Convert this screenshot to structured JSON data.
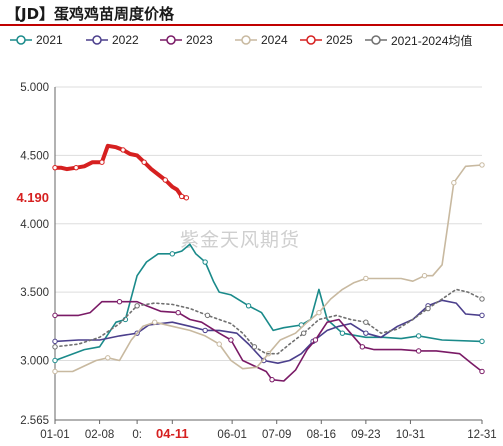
{
  "title": "【JD】蛋鸡鸡苗周度价格",
  "watermark": "紫金天风期货",
  "chart_data": {
    "type": "line",
    "title": "【JD】蛋鸡鸡苗周度价格",
    "xlabel": "",
    "ylabel": "",
    "ylim": [
      2.565,
      5.0
    ],
    "yticks": [
      "5.000",
      "4.500",
      "4.000",
      "3.500",
      "3.000",
      "2.565"
    ],
    "ytick_values": [
      5.0,
      4.5,
      4.0,
      3.5,
      3.0,
      2.565
    ],
    "xticks": [
      "01-01",
      "02-08",
      "0:",
      "04-11",
      "06-01",
      "07-09",
      "08-16",
      "09-23",
      "10-31",
      "12-31"
    ],
    "xtick_days": [
      0,
      38,
      70,
      100,
      151,
      189,
      227,
      265,
      303,
      364
    ],
    "highlight_xtick": "04-11",
    "highlight_value": "4.190",
    "legend_position": "top",
    "grid": "horizontal",
    "x_unit": "day of year",
    "series": [
      {
        "name": "2021",
        "color": "#1a8a8a",
        "marker": "circle",
        "points": [
          [
            0,
            3.0
          ],
          [
            25,
            3.08
          ],
          [
            38,
            3.1
          ],
          [
            52,
            3.28
          ],
          [
            60,
            3.3
          ],
          [
            70,
            3.62
          ],
          [
            78,
            3.72
          ],
          [
            88,
            3.78
          ],
          [
            100,
            3.78
          ],
          [
            108,
            3.8
          ],
          [
            115,
            3.85
          ],
          [
            120,
            3.78
          ],
          [
            128,
            3.72
          ],
          [
            135,
            3.58
          ],
          [
            140,
            3.5
          ],
          [
            150,
            3.48
          ],
          [
            165,
            3.4
          ],
          [
            176,
            3.35
          ],
          [
            186,
            3.22
          ],
          [
            195,
            3.24
          ],
          [
            210,
            3.26
          ],
          [
            218,
            3.3
          ],
          [
            225,
            3.52
          ],
          [
            232,
            3.3
          ],
          [
            245,
            3.2
          ],
          [
            265,
            3.17
          ],
          [
            280,
            3.17
          ],
          [
            295,
            3.16
          ],
          [
            310,
            3.18
          ],
          [
            330,
            3.15
          ],
          [
            364,
            3.14
          ]
        ]
      },
      {
        "name": "2022",
        "color": "#4b3f8c",
        "marker": "circle",
        "points": [
          [
            0,
            3.14
          ],
          [
            20,
            3.15
          ],
          [
            38,
            3.15
          ],
          [
            55,
            3.18
          ],
          [
            70,
            3.2
          ],
          [
            80,
            3.26
          ],
          [
            100,
            3.28
          ],
          [
            115,
            3.25
          ],
          [
            128,
            3.22
          ],
          [
            140,
            3.22
          ],
          [
            155,
            3.2
          ],
          [
            165,
            3.12
          ],
          [
            178,
            3.0
          ],
          [
            190,
            2.98
          ],
          [
            200,
            3.0
          ],
          [
            210,
            3.05
          ],
          [
            220,
            3.14
          ],
          [
            232,
            3.22
          ],
          [
            242,
            3.25
          ],
          [
            252,
            3.27
          ],
          [
            265,
            3.2
          ],
          [
            278,
            3.17
          ],
          [
            292,
            3.25
          ],
          [
            305,
            3.3
          ],
          [
            318,
            3.4
          ],
          [
            330,
            3.44
          ],
          [
            342,
            3.42
          ],
          [
            350,
            3.34
          ],
          [
            364,
            3.33
          ]
        ]
      },
      {
        "name": "2023",
        "color": "#7a1a66",
        "marker": "circle",
        "points": [
          [
            0,
            3.33
          ],
          [
            20,
            3.33
          ],
          [
            30,
            3.35
          ],
          [
            40,
            3.43
          ],
          [
            55,
            3.43
          ],
          [
            70,
            3.43
          ],
          [
            78,
            3.4
          ],
          [
            90,
            3.36
          ],
          [
            105,
            3.35
          ],
          [
            115,
            3.3
          ],
          [
            125,
            3.28
          ],
          [
            140,
            3.2
          ],
          [
            150,
            3.15
          ],
          [
            160,
            3.0
          ],
          [
            170,
            2.96
          ],
          [
            180,
            2.92
          ],
          [
            185,
            2.86
          ],
          [
            195,
            2.85
          ],
          [
            205,
            2.93
          ],
          [
            215,
            3.08
          ],
          [
            222,
            3.15
          ],
          [
            232,
            3.28
          ],
          [
            242,
            3.3
          ],
          [
            252,
            3.2
          ],
          [
            262,
            3.1
          ],
          [
            272,
            3.08
          ],
          [
            282,
            3.08
          ],
          [
            295,
            3.08
          ],
          [
            310,
            3.07
          ],
          [
            325,
            3.07
          ],
          [
            345,
            3.05
          ],
          [
            355,
            2.98
          ],
          [
            364,
            2.92
          ]
        ]
      },
      {
        "name": "2024",
        "color": "#c8b9a0",
        "marker": "circle",
        "points": [
          [
            0,
            2.92
          ],
          [
            15,
            2.92
          ],
          [
            25,
            2.96
          ],
          [
            35,
            3.0
          ],
          [
            45,
            3.02
          ],
          [
            55,
            3.0
          ],
          [
            65,
            3.15
          ],
          [
            75,
            3.25
          ],
          [
            85,
            3.28
          ],
          [
            100,
            3.25
          ],
          [
            115,
            3.22
          ],
          [
            128,
            3.18
          ],
          [
            140,
            3.12
          ],
          [
            150,
            3.0
          ],
          [
            160,
            2.94
          ],
          [
            172,
            2.95
          ],
          [
            182,
            3.05
          ],
          [
            192,
            3.15
          ],
          [
            205,
            3.2
          ],
          [
            215,
            3.28
          ],
          [
            225,
            3.35
          ],
          [
            235,
            3.45
          ],
          [
            245,
            3.52
          ],
          [
            255,
            3.57
          ],
          [
            265,
            3.6
          ],
          [
            280,
            3.6
          ],
          [
            295,
            3.6
          ],
          [
            305,
            3.58
          ],
          [
            315,
            3.62
          ],
          [
            322,
            3.62
          ],
          [
            330,
            3.7
          ],
          [
            335,
            4.0
          ],
          [
            340,
            4.3
          ],
          [
            350,
            4.42
          ],
          [
            364,
            4.43
          ]
        ]
      },
      {
        "name": "2025",
        "color": "#d62020",
        "marker": "circle",
        "width": 4,
        "points": [
          [
            0,
            4.41
          ],
          [
            5,
            4.41
          ],
          [
            10,
            4.4
          ],
          [
            18,
            4.41
          ],
          [
            25,
            4.42
          ],
          [
            32,
            4.45
          ],
          [
            40,
            4.45
          ],
          [
            45,
            4.57
          ],
          [
            52,
            4.56
          ],
          [
            58,
            4.54
          ],
          [
            64,
            4.51
          ],
          [
            70,
            4.5
          ],
          [
            76,
            4.45
          ],
          [
            82,
            4.4
          ],
          [
            88,
            4.36
          ],
          [
            94,
            4.32
          ],
          [
            100,
            4.27
          ],
          [
            104,
            4.25
          ],
          [
            108,
            4.2
          ],
          [
            112,
            4.19
          ]
        ]
      },
      {
        "name": "2021-2024均值",
        "color": "#707070",
        "marker": "circle",
        "dash": "2,3",
        "points": [
          [
            0,
            3.1
          ],
          [
            20,
            3.12
          ],
          [
            38,
            3.17
          ],
          [
            55,
            3.27
          ],
          [
            70,
            3.4
          ],
          [
            85,
            3.42
          ],
          [
            100,
            3.41
          ],
          [
            115,
            3.38
          ],
          [
            130,
            3.33
          ],
          [
            140,
            3.3
          ],
          [
            150,
            3.27
          ],
          [
            160,
            3.2
          ],
          [
            170,
            3.1
          ],
          [
            180,
            3.05
          ],
          [
            190,
            3.05
          ],
          [
            200,
            3.12
          ],
          [
            212,
            3.2
          ],
          [
            225,
            3.3
          ],
          [
            240,
            3.33
          ],
          [
            252,
            3.3
          ],
          [
            265,
            3.28
          ],
          [
            278,
            3.2
          ],
          [
            292,
            3.23
          ],
          [
            305,
            3.3
          ],
          [
            318,
            3.38
          ],
          [
            330,
            3.45
          ],
          [
            342,
            3.52
          ],
          [
            352,
            3.5
          ],
          [
            364,
            3.45
          ]
        ]
      }
    ]
  }
}
